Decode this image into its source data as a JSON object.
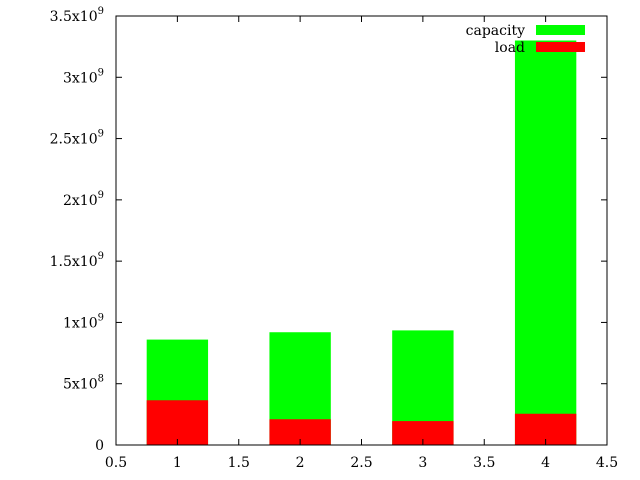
{
  "chart_data": {
    "type": "bar",
    "stacked": false,
    "overlaid": true,
    "x": [
      1,
      2,
      3,
      4
    ],
    "series": [
      {
        "name": "capacity",
        "values": [
          860000000,
          920000000,
          935000000,
          3300000000
        ],
        "color": "#00ff00"
      },
      {
        "name": "load",
        "values": [
          365000000,
          210000000,
          195000000,
          255000000
        ],
        "color": "#ff0000"
      }
    ],
    "xlim": [
      0.5,
      4.5
    ],
    "ylim": [
      0,
      3500000000
    ],
    "x_ticks": [
      "0.5",
      "1",
      "1.5",
      "2",
      "2.5",
      "3",
      "3.5",
      "4",
      "4.5"
    ],
    "y_ticks": [
      {
        "mantissa": "0",
        "exp": ""
      },
      {
        "mantissa": "5x10",
        "exp": "8"
      },
      {
        "mantissa": "1x10",
        "exp": "9"
      },
      {
        "mantissa": "1.5x10",
        "exp": "9"
      },
      {
        "mantissa": "2x10",
        "exp": "9"
      },
      {
        "mantissa": "2.5x10",
        "exp": "9"
      },
      {
        "mantissa": "3x10",
        "exp": "9"
      },
      {
        "mantissa": "3.5x10",
        "exp": "9"
      }
    ],
    "legend_position": "top-right",
    "grid": false,
    "title": "",
    "xlabel": "",
    "ylabel": ""
  }
}
